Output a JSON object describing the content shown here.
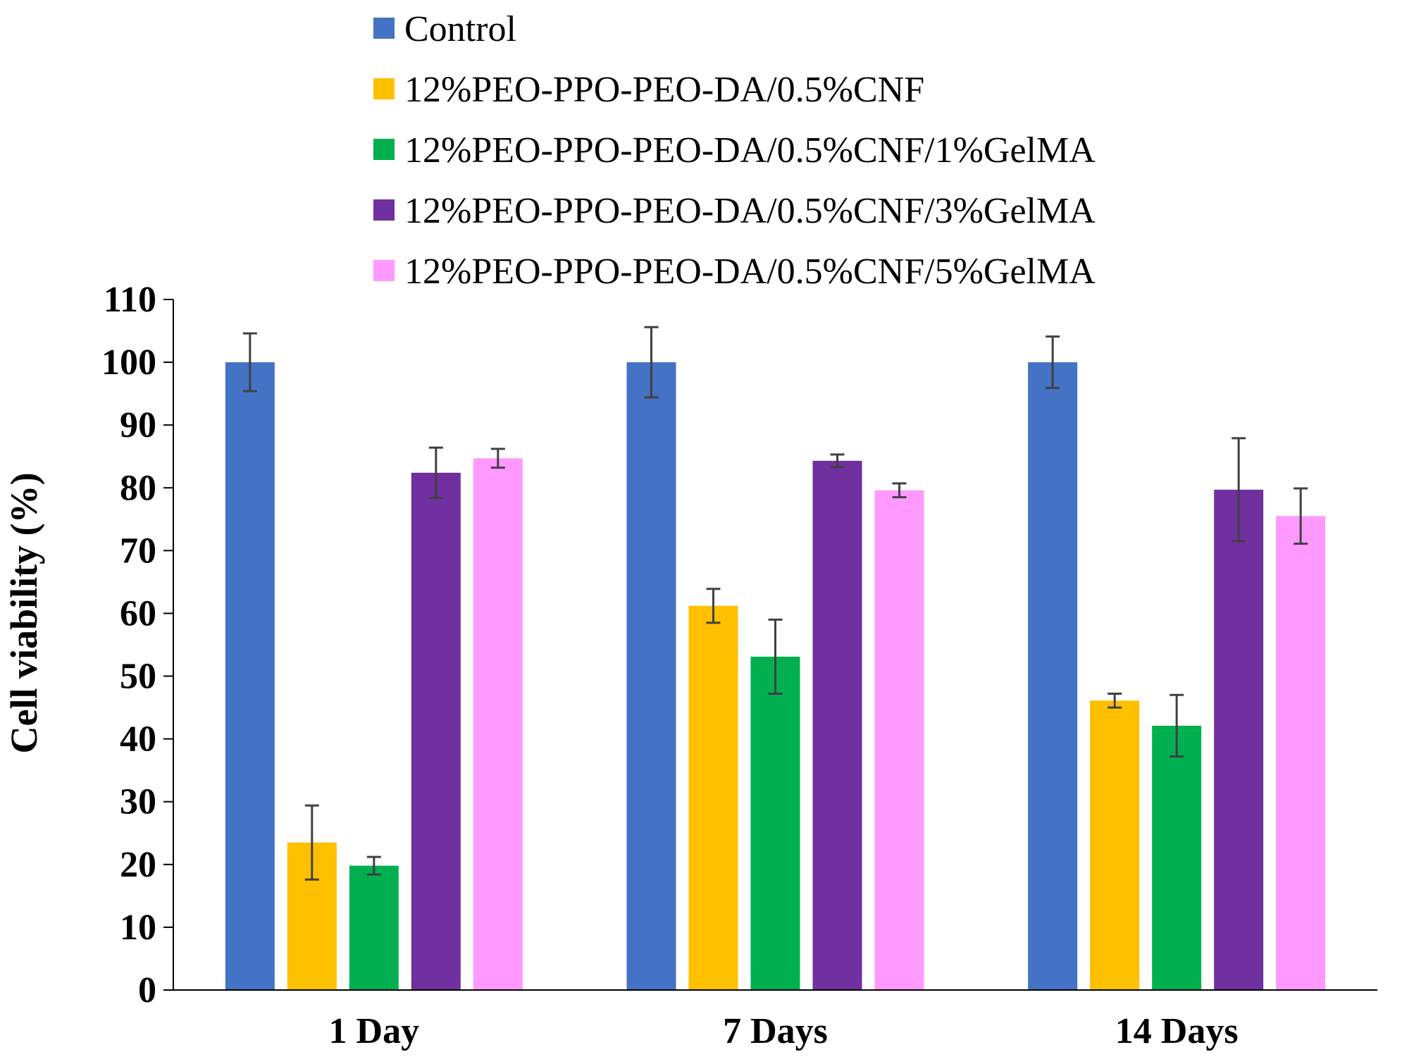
{
  "chart_data": {
    "type": "bar",
    "title": "",
    "xlabel": "",
    "ylabel": "Cell viability (%)",
    "ylim": [
      0,
      110
    ],
    "yticks": [
      0,
      10,
      20,
      30,
      40,
      50,
      60,
      70,
      80,
      90,
      100,
      110
    ],
    "grid": false,
    "legend_position": "top",
    "categories": [
      "1 Day",
      "7 Days",
      "14 Days"
    ],
    "series": [
      {
        "name": "Control",
        "color": "#4472C4",
        "values": [
          100,
          100,
          100
        ],
        "errors": [
          4.6,
          5.6,
          4.1
        ]
      },
      {
        "name": "12%PEO-PPO-PEO-DA/0.5%CNF",
        "color": "#FFC000",
        "values": [
          23.5,
          61.2,
          46.1
        ],
        "errors": [
          5.9,
          2.7,
          1.1
        ]
      },
      {
        "name": "12%PEO-PPO-PEO-DA/0.5%CNF/1%GelMA",
        "color": "#00B050",
        "values": [
          19.8,
          53.1,
          42.1
        ],
        "errors": [
          1.4,
          5.9,
          4.9
        ]
      },
      {
        "name": "12%PEO-PPO-PEO-DA/0.5%CNF/3%GelMA",
        "color": "#7030A0",
        "values": [
          82.4,
          84.3,
          79.7
        ],
        "errors": [
          4.0,
          1.0,
          8.2
        ]
      },
      {
        "name": "12%PEO-PPO-PEO-DA/0.5%CNF/5%GelMA",
        "color": "#FF99FF",
        "values": [
          84.7,
          79.6,
          75.5
        ],
        "errors": [
          1.5,
          1.1,
          4.4
        ]
      }
    ]
  }
}
